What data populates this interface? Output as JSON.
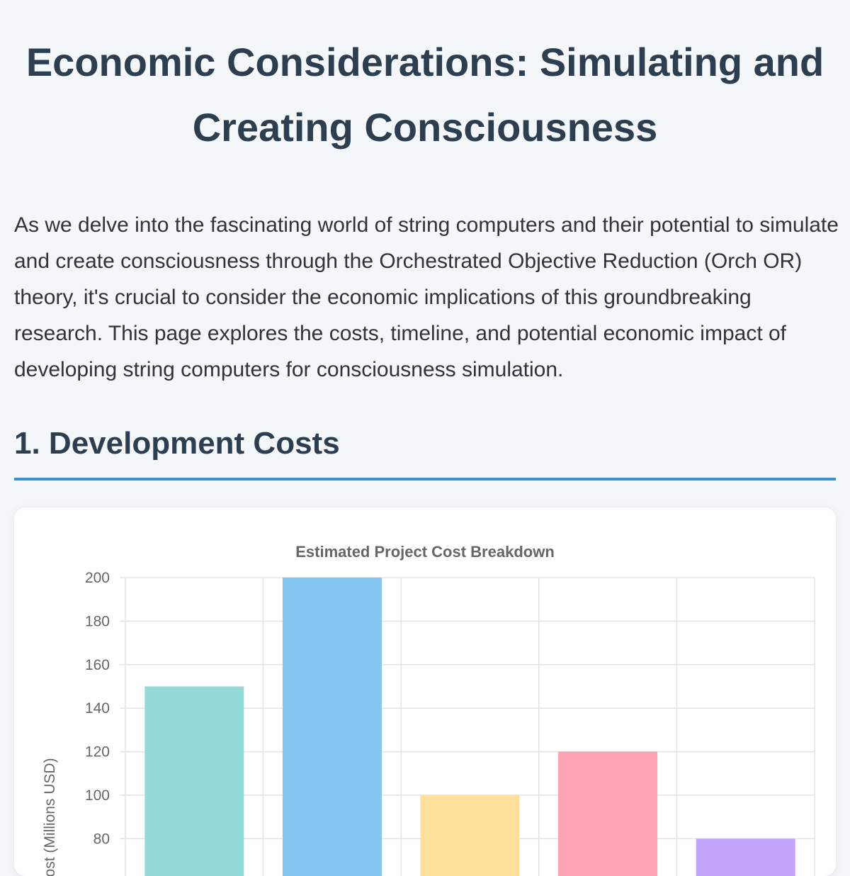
{
  "page": {
    "title": "Economic Considerations: Simulating and Creating Consciousness",
    "intro": "As we delve into the fascinating world of string computers and their potential to simulate and create consciousness through the Orchestrated Objective Reduction (Orch OR) theory, it's crucial to consider the economic implications of this groundbreaking research. This page explores the costs, timeline, and potential economic impact of developing string computers for consciousness simulation."
  },
  "section": {
    "heading": "1. Development Costs"
  },
  "chart_data": {
    "type": "bar",
    "title": "Estimated Project Cost Breakdown",
    "ylabel": "Cost (Millions USD)",
    "xlabel": "",
    "ylim": [
      0,
      200
    ],
    "yticks": [
      80,
      100,
      120,
      140,
      160,
      180,
      200
    ],
    "grid": true,
    "legend": "none",
    "values": [
      150,
      200,
      100,
      120,
      80
    ],
    "colors": [
      "#94dbd7",
      "#84c6f2",
      "#fee09b",
      "#fea2b4",
      "#c2a5fd"
    ]
  }
}
